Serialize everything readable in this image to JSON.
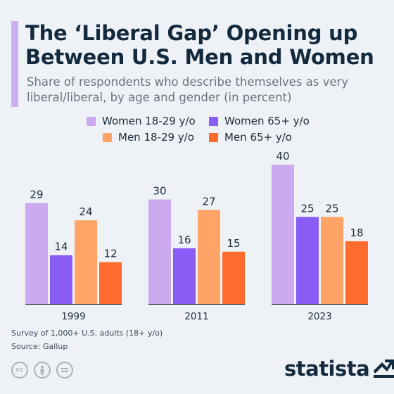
{
  "title": "The ‘Liberal Gap’ Opening up Between U.S. Men and Women",
  "subtitle": "Share of respondents who describe themselves as very liberal/liberal, by age and gender (in percent)",
  "colors": {
    "women_young": "#cbaaf0",
    "women_old": "#8a5cf6",
    "men_young": "#ffa366",
    "men_old": "#ff6b2c",
    "accent": "#cbb0f0",
    "brand": "#13293d"
  },
  "chart_data": {
    "type": "bar",
    "title": "The ‘Liberal Gap’ Opening up Between U.S. Men and Women",
    "subtitle": "Share of respondents who describe themselves as very liberal/liberal, by age and gender (in percent)",
    "categories": [
      "1999",
      "2011",
      "2023"
    ],
    "series": [
      {
        "name": "Women 18-29 y/o",
        "values": [
          29,
          30,
          40
        ]
      },
      {
        "name": "Women 65+ y/o",
        "values": [
          14,
          16,
          25
        ]
      },
      {
        "name": "Men 18-29 y/o",
        "values": [
          24,
          27,
          25
        ]
      },
      {
        "name": "Men 65+ y/o",
        "values": [
          12,
          15,
          18
        ]
      }
    ],
    "ylim": [
      0,
      40
    ],
    "grid": false,
    "legend": "top",
    "data_labels": true
  },
  "footnotes": {
    "survey": "Survey of 1,000+ U.S. adults (18+ y/o)",
    "source": "Source: Gallup"
  },
  "brand": {
    "name": "statista",
    "license_icons": [
      "cc-icon",
      "by-icon",
      "nd-icon"
    ]
  }
}
